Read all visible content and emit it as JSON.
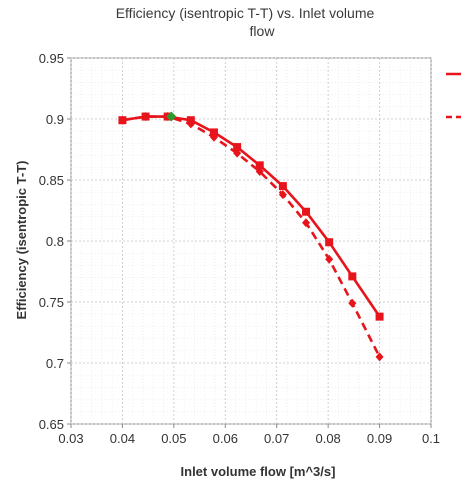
{
  "chart_data": {
    "type": "line",
    "title_line1": "Efficiency (isentropic T-T) vs. Inlet volume",
    "title_line2": "flow",
    "xlabel": "Inlet volume flow [m^3/s]",
    "ylabel": "Efficiency (isentropic T-T)",
    "xlim": [
      0.03,
      0.1
    ],
    "ylim": [
      0.65,
      0.95
    ],
    "x_ticks": [
      "0.03",
      "0.04",
      "0.05",
      "0.06",
      "0.07",
      "0.08",
      "0.09",
      "0.1"
    ],
    "y_ticks": [
      "0.65",
      "0.7",
      "0.75",
      "0.8",
      "0.85",
      "0.9",
      "0.95"
    ],
    "grid": true,
    "legend": "right, clipped",
    "series": [
      {
        "style": "solid",
        "marker": "square",
        "color": "#e8141c",
        "x": [
          0.04,
          0.0445,
          0.0488,
          0.0533,
          0.0578,
          0.0623,
          0.0667,
          0.0712,
          0.0757,
          0.0802,
          0.0847,
          0.09
        ],
        "y": [
          0.899,
          0.902,
          0.902,
          0.899,
          0.889,
          0.877,
          0.862,
          0.845,
          0.824,
          0.799,
          0.771,
          0.738
        ]
      },
      {
        "style": "dashed",
        "marker": "diamond",
        "color": "#e8141c",
        "x": [
          0.04,
          0.0445,
          0.0488,
          0.0533,
          0.0578,
          0.0623,
          0.0667,
          0.0712,
          0.0757,
          0.0802,
          0.0847,
          0.09
        ],
        "y": [
          0.899,
          0.902,
          0.902,
          0.896,
          0.885,
          0.872,
          0.857,
          0.838,
          0.815,
          0.785,
          0.749,
          0.705
        ]
      }
    ],
    "highlight_point": {
      "x": 0.0495,
      "y": 0.902,
      "color": "#2e9a2e"
    }
  }
}
